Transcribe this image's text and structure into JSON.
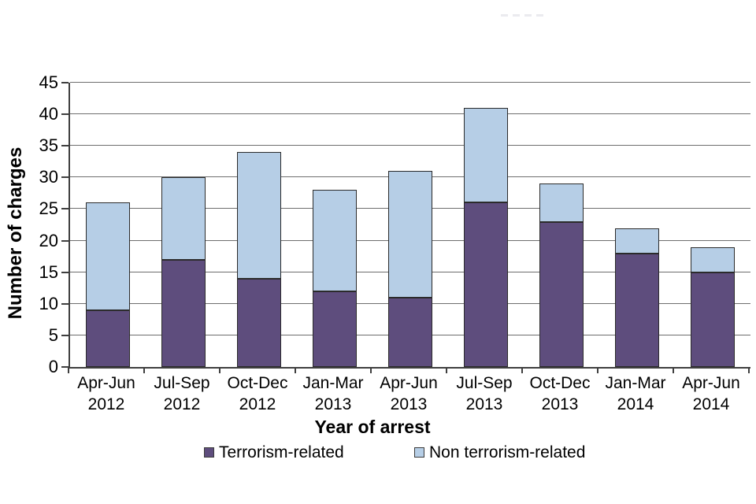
{
  "chart_data": {
    "type": "bar",
    "stacked": true,
    "title": "",
    "xlabel": "Year of arrest",
    "ylabel": "Number of charges",
    "categories": [
      "Apr-Jun\n2012",
      "Jul-Sep\n2012",
      "Oct-Dec\n2012",
      "Jan-Mar\n2013",
      "Apr-Jun\n2013",
      "Jul-Sep\n2013",
      "Oct-Dec\n2013",
      "Jan-Mar\n2014",
      "Apr-Jun\n2014"
    ],
    "series": [
      {
        "name": "Terrorism-related",
        "color": "#5E4D7D",
        "values": [
          9,
          17,
          14,
          12,
          11,
          26,
          23,
          18,
          15
        ]
      },
      {
        "name": "Non terrorism-related",
        "color": "#B6CEE6",
        "values": [
          17,
          13,
          20,
          16,
          20,
          15,
          6,
          4,
          4
        ]
      }
    ],
    "totals": [
      26,
      30,
      34,
      28,
      31,
      41,
      29,
      22,
      19
    ],
    "ylim": [
      0,
      45
    ],
    "ytick_step": 5,
    "yticks": [
      0,
      5,
      10,
      15,
      20,
      25,
      30,
      35,
      40,
      45
    ],
    "grid": true,
    "legend_position": "bottom"
  }
}
